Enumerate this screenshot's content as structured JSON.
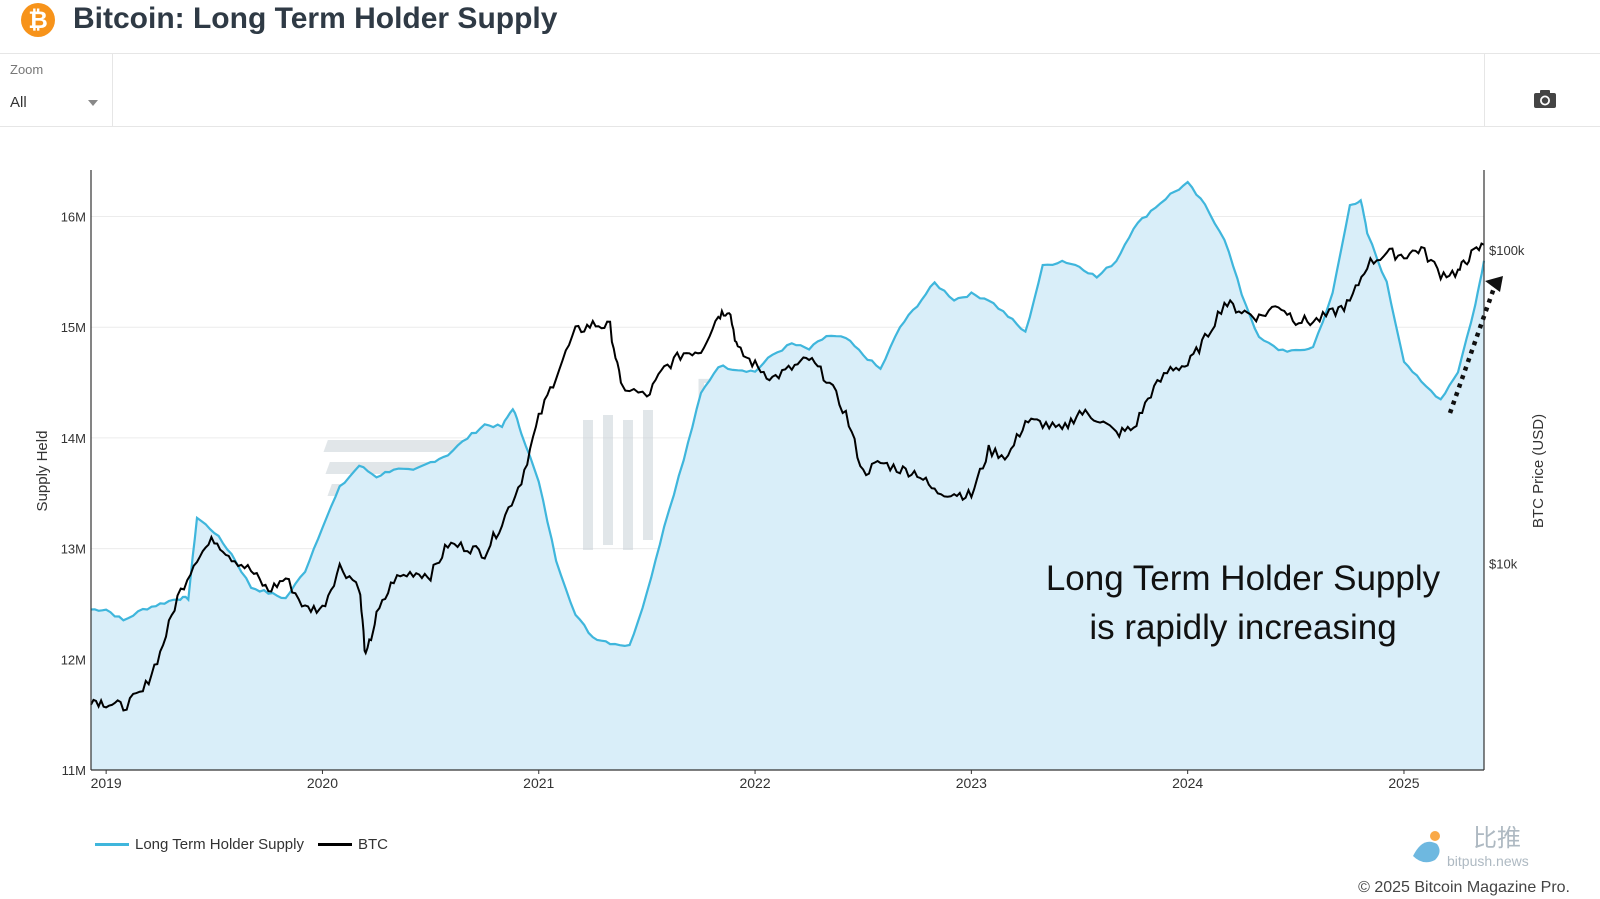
{
  "header": {
    "title": "Bitcoin: Long Term Holder Supply",
    "logo_icon": "bitcoin-logo-icon",
    "logo_color": "#f7931a"
  },
  "toolbar": {
    "zoom_label": "Zoom",
    "zoom_value": "All",
    "camera_icon": "camera-icon"
  },
  "legend": {
    "items": [
      {
        "label": "Long Term Holder Supply",
        "color": "#3fb6dc"
      },
      {
        "label": "BTC",
        "color": "#000000"
      }
    ]
  },
  "footer": {
    "copyright": "© 2025 Bitcoin Magazine Pro.",
    "watermark_cn": "比推",
    "watermark_url": "bitpush.news"
  },
  "chart_data": {
    "type": "line",
    "title": "",
    "watermark": "BITCOIN MAGAZINE PRO",
    "annotation": [
      "Long Term Holder Supply",
      "is rapidly increasing"
    ],
    "xlabel": "",
    "x_ticks": [
      "2019",
      "2020",
      "2021",
      "2022",
      "2023",
      "2024",
      "2025"
    ],
    "x_range": [
      2018.93,
      2025.37
    ],
    "y_left": {
      "label": "Supply Held",
      "ticks": [
        "11M",
        "12M",
        "13M",
        "14M",
        "15M",
        "16M"
      ],
      "tick_values": [
        11,
        12,
        13,
        14,
        15,
        16
      ],
      "range": [
        11,
        16.42
      ],
      "unit": "M BTC"
    },
    "y_right": {
      "label": "BTC Price (USD)",
      "scale": "log",
      "ticks": [
        "$10k",
        "$100k"
      ],
      "tick_values": [
        10000,
        100000
      ],
      "range": [
        2200,
        180000
      ]
    },
    "grid": true,
    "legend_position": "bottom-left",
    "series": [
      {
        "name": "Long Term Holder Supply",
        "color": "#3fb6dc",
        "fill": "#d9eef9",
        "axis": "left",
        "points": [
          [
            2018.93,
            12.45
          ],
          [
            2019.0,
            12.45
          ],
          [
            2019.08,
            12.35
          ],
          [
            2019.17,
            12.45
          ],
          [
            2019.25,
            12.5
          ],
          [
            2019.33,
            12.55
          ],
          [
            2019.38,
            12.55
          ],
          [
            2019.42,
            13.28
          ],
          [
            2019.5,
            13.15
          ],
          [
            2019.58,
            12.95
          ],
          [
            2019.67,
            12.65
          ],
          [
            2019.75,
            12.6
          ],
          [
            2019.83,
            12.55
          ],
          [
            2019.92,
            12.8
          ],
          [
            2020.0,
            13.2
          ],
          [
            2020.08,
            13.55
          ],
          [
            2020.17,
            13.75
          ],
          [
            2020.25,
            13.65
          ],
          [
            2020.33,
            13.72
          ],
          [
            2020.42,
            13.7
          ],
          [
            2020.5,
            13.78
          ],
          [
            2020.58,
            13.85
          ],
          [
            2020.67,
            14.0
          ],
          [
            2020.75,
            14.12
          ],
          [
            2020.83,
            14.1
          ],
          [
            2020.88,
            14.27
          ],
          [
            2020.92,
            14.05
          ],
          [
            2021.0,
            13.6
          ],
          [
            2021.08,
            12.9
          ],
          [
            2021.17,
            12.4
          ],
          [
            2021.25,
            12.2
          ],
          [
            2021.33,
            12.15
          ],
          [
            2021.42,
            12.12
          ],
          [
            2021.5,
            12.6
          ],
          [
            2021.58,
            13.2
          ],
          [
            2021.67,
            13.8
          ],
          [
            2021.75,
            14.4
          ],
          [
            2021.83,
            14.65
          ],
          [
            2021.92,
            14.62
          ],
          [
            2022.0,
            14.6
          ],
          [
            2022.08,
            14.75
          ],
          [
            2022.17,
            14.85
          ],
          [
            2022.25,
            14.8
          ],
          [
            2022.33,
            14.92
          ],
          [
            2022.42,
            14.9
          ],
          [
            2022.5,
            14.75
          ],
          [
            2022.58,
            14.62
          ],
          [
            2022.67,
            15.0
          ],
          [
            2022.75,
            15.2
          ],
          [
            2022.83,
            15.4
          ],
          [
            2022.92,
            15.25
          ],
          [
            2023.0,
            15.3
          ],
          [
            2023.08,
            15.25
          ],
          [
            2023.17,
            15.1
          ],
          [
            2023.25,
            14.95
          ],
          [
            2023.33,
            15.55
          ],
          [
            2023.42,
            15.6
          ],
          [
            2023.5,
            15.55
          ],
          [
            2023.58,
            15.45
          ],
          [
            2023.67,
            15.6
          ],
          [
            2023.75,
            15.9
          ],
          [
            2023.83,
            16.05
          ],
          [
            2023.92,
            16.2
          ],
          [
            2024.0,
            16.3
          ],
          [
            2024.08,
            16.1
          ],
          [
            2024.17,
            15.8
          ],
          [
            2024.25,
            15.3
          ],
          [
            2024.33,
            14.9
          ],
          [
            2024.42,
            14.8
          ],
          [
            2024.5,
            14.78
          ],
          [
            2024.58,
            14.82
          ],
          [
            2024.67,
            15.3
          ],
          [
            2024.75,
            16.1
          ],
          [
            2024.8,
            16.15
          ],
          [
            2024.83,
            15.85
          ],
          [
            2024.92,
            15.4
          ],
          [
            2025.0,
            14.7
          ],
          [
            2025.08,
            14.5
          ],
          [
            2025.17,
            14.35
          ],
          [
            2025.25,
            14.6
          ],
          [
            2025.33,
            15.2
          ],
          [
            2025.37,
            15.6
          ]
        ]
      },
      {
        "name": "BTC",
        "color": "#000000",
        "axis": "right",
        "points": [
          [
            2018.93,
            3700
          ],
          [
            2019.0,
            3600
          ],
          [
            2019.08,
            3500
          ],
          [
            2019.17,
            3900
          ],
          [
            2019.25,
            5200
          ],
          [
            2019.33,
            7800
          ],
          [
            2019.42,
            10500
          ],
          [
            2019.5,
            12000
          ],
          [
            2019.58,
            10500
          ],
          [
            2019.67,
            9500
          ],
          [
            2019.75,
            8200
          ],
          [
            2019.83,
            9000
          ],
          [
            2019.92,
            7200
          ],
          [
            2020.0,
            7200
          ],
          [
            2020.08,
            9800
          ],
          [
            2020.17,
            8500
          ],
          [
            2020.2,
            5000
          ],
          [
            2020.25,
            6800
          ],
          [
            2020.33,
            8900
          ],
          [
            2020.42,
            9400
          ],
          [
            2020.5,
            9200
          ],
          [
            2020.58,
            11500
          ],
          [
            2020.67,
            11300
          ],
          [
            2020.75,
            10800
          ],
          [
            2020.83,
            13500
          ],
          [
            2020.92,
            18500
          ],
          [
            2021.0,
            29000
          ],
          [
            2021.08,
            40000
          ],
          [
            2021.17,
            55000
          ],
          [
            2021.25,
            58000
          ],
          [
            2021.33,
            57000
          ],
          [
            2021.38,
            37000
          ],
          [
            2021.5,
            34000
          ],
          [
            2021.58,
            42000
          ],
          [
            2021.67,
            47000
          ],
          [
            2021.75,
            48000
          ],
          [
            2021.83,
            62000
          ],
          [
            2021.88,
            65000
          ],
          [
            2021.92,
            48000
          ],
          [
            2022.0,
            43000
          ],
          [
            2022.08,
            39000
          ],
          [
            2022.17,
            42000
          ],
          [
            2022.25,
            45000
          ],
          [
            2022.33,
            39000
          ],
          [
            2022.42,
            30000
          ],
          [
            2022.5,
            19500
          ],
          [
            2022.58,
            21000
          ],
          [
            2022.67,
            20000
          ],
          [
            2022.75,
            19500
          ],
          [
            2022.83,
            17000
          ],
          [
            2022.92,
            16800
          ],
          [
            2023.0,
            16500
          ],
          [
            2023.08,
            23000
          ],
          [
            2023.17,
            22000
          ],
          [
            2023.25,
            28500
          ],
          [
            2023.33,
            28000
          ],
          [
            2023.42,
            26500
          ],
          [
            2023.5,
            30500
          ],
          [
            2023.58,
            29200
          ],
          [
            2023.67,
            26000
          ],
          [
            2023.75,
            27000
          ],
          [
            2023.83,
            35000
          ],
          [
            2023.92,
            42000
          ],
          [
            2024.0,
            43000
          ],
          [
            2024.08,
            52000
          ],
          [
            2024.17,
            68000
          ],
          [
            2024.25,
            64000
          ],
          [
            2024.33,
            61000
          ],
          [
            2024.42,
            67000
          ],
          [
            2024.5,
            60000
          ],
          [
            2024.58,
            59000
          ],
          [
            2024.67,
            63000
          ],
          [
            2024.75,
            68000
          ],
          [
            2024.83,
            90000
          ],
          [
            2024.92,
            98000
          ],
          [
            2025.0,
            96000
          ],
          [
            2025.08,
            101000
          ],
          [
            2025.17,
            84000
          ],
          [
            2025.25,
            85000
          ],
          [
            2025.3,
            95000
          ],
          [
            2025.37,
            104000
          ]
        ]
      }
    ]
  }
}
